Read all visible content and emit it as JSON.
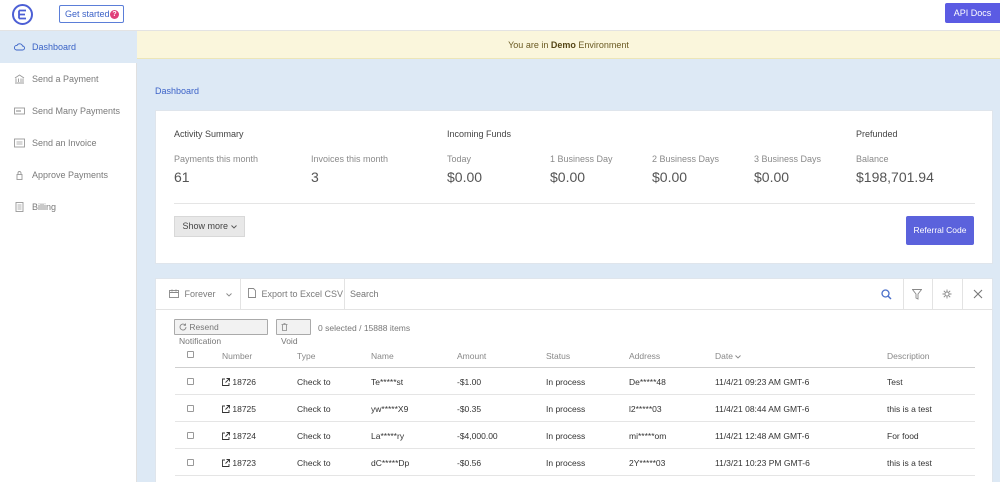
{
  "header": {
    "get_started": "Get started",
    "help_glyph": "?",
    "api_docs": "API Docs"
  },
  "sidebar": {
    "items": [
      {
        "label": "Dashboard",
        "icon": "cloud-icon"
      },
      {
        "label": "Send a Payment",
        "icon": "bank-icon"
      },
      {
        "label": "Send Many Payments",
        "icon": "check-icon"
      },
      {
        "label": "Send an Invoice",
        "icon": "invoice-icon"
      },
      {
        "label": "Approve Payments",
        "icon": "lock-icon"
      },
      {
        "label": "Billing",
        "icon": "document-icon"
      }
    ]
  },
  "banner": {
    "prefix": "You are in ",
    "env": "Demo",
    "suffix": " Environment"
  },
  "breadcrumb": "Dashboard",
  "summary": {
    "activity": {
      "title": "Activity Summary",
      "payments_label": "Payments this month",
      "payments_value": "61",
      "invoices_label": "Invoices this month",
      "invoices_value": "3"
    },
    "incoming": {
      "title": "Incoming Funds",
      "items": [
        {
          "label": "Today",
          "value": "$0.00"
        },
        {
          "label": "1 Business Day",
          "value": "$0.00"
        },
        {
          "label": "2 Business Days",
          "value": "$0.00"
        },
        {
          "label": "3 Business Days",
          "value": "$0.00"
        }
      ]
    },
    "prefunded": {
      "title": "Prefunded",
      "label": "Balance",
      "value": "$198,701.94"
    },
    "show_more": "Show more",
    "referral": "Referral Code"
  },
  "toolbar": {
    "range": "Forever",
    "export": "Export to Excel CSV",
    "search_placeholder": "Search"
  },
  "actions": {
    "resend": "Resend Notification",
    "void": "Void",
    "selection": "0 selected / 15888 items"
  },
  "table": {
    "columns": [
      "Number",
      "Type",
      "Name",
      "Amount",
      "Status",
      "Address",
      "Date",
      "Description"
    ],
    "rows": [
      {
        "number": "18726",
        "type": "Check to",
        "name": "Te*****st",
        "amount": "-$1.00",
        "status": "In process",
        "address": "De*****48",
        "date": "11/4/21 09:23 AM GMT-6",
        "description": "Test"
      },
      {
        "number": "18725",
        "type": "Check to",
        "name": "yw*****X9",
        "amount": "-$0.35",
        "status": "In process",
        "address": "l2*****03",
        "date": "11/4/21 08:44 AM GMT-6",
        "description": "this is a test"
      },
      {
        "number": "18724",
        "type": "Check to",
        "name": "La*****ry",
        "amount": "-$4,000.00",
        "status": "In process",
        "address": "mi*****om",
        "date": "11/4/21 12:48 AM GMT-6",
        "description": "For food"
      },
      {
        "number": "18723",
        "type": "Check to",
        "name": "dC*****Dp",
        "amount": "-$0.56",
        "status": "In process",
        "address": "2Y*****03",
        "date": "11/3/21 10:23 PM GMT-6",
        "description": "this is a test"
      }
    ]
  }
}
